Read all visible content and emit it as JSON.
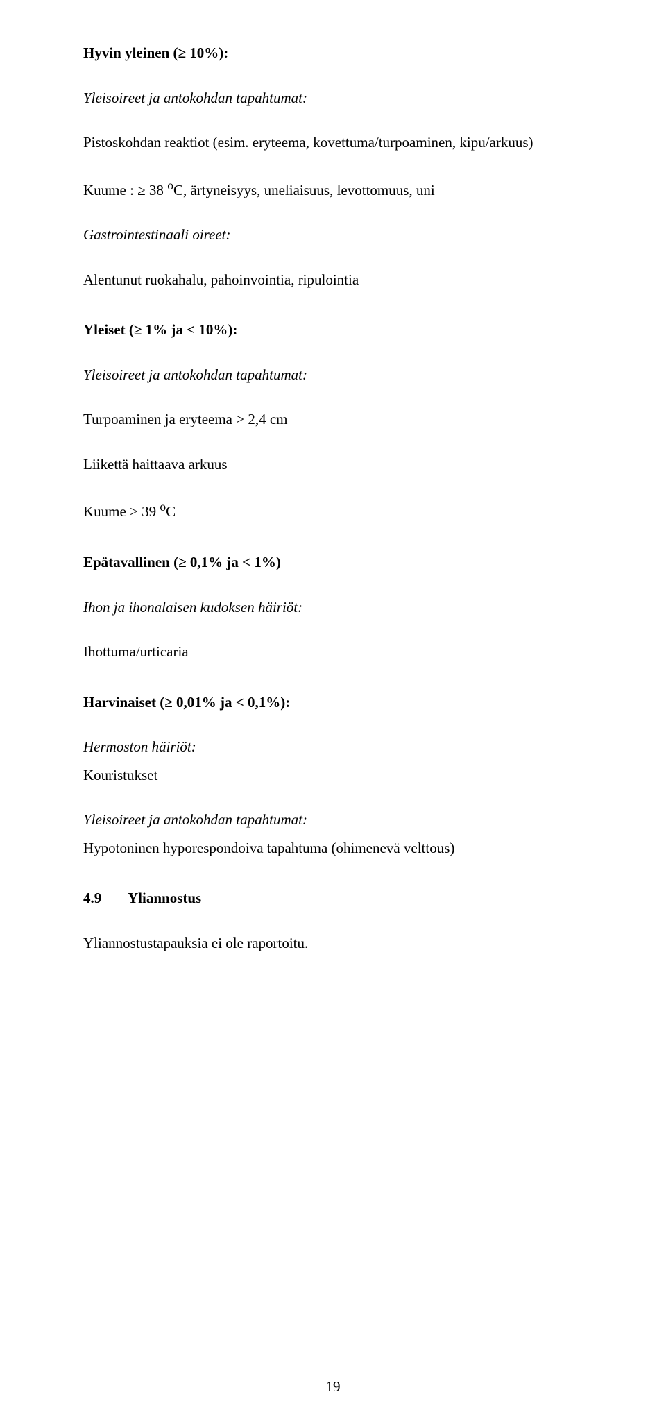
{
  "very_common": {
    "heading": "Hyvin yleinen (≥ 10%):",
    "sub_italic": "Yleisoireet ja antokohdan tapahtumat:",
    "line1": "Pistoskohdan reaktiot (esim. eryteema, kovettuma/turpoaminen, kipu/arkuus)",
    "line2_pre": "Kuume : ≥ 38 ",
    "line2_sup": "o",
    "line2_post": "C, ärtyneisyys, uneliaisuus, levottomuus, uni",
    "gi_italic": "Gastrointestinaali oireet:",
    "gi_line": "Alentunut ruokahalu, pahoinvointia, ripulointia"
  },
  "common": {
    "heading": "Yleiset (≥ 1% ja < 10%):",
    "sub_italic": "Yleisoireet ja antokohdan tapahtumat:",
    "line1": "Turpoaminen ja eryteema > 2,4 cm",
    "line2": "Liikettä haittaava arkuus",
    "line3_pre": "Kuume > 39 ",
    "line3_sup": "o",
    "line3_post": "C"
  },
  "uncommon": {
    "heading": "Epätavallinen (≥ 0,1% ja < 1%)",
    "sub_italic": "Ihon ja ihonalaisen kudoksen häiriöt:",
    "line1": "Ihottuma/urticaria"
  },
  "rare": {
    "heading": "Harvinaiset (≥ 0,01% ja < 0,1%):",
    "sub1_italic": "Hermoston häiriöt:",
    "line1": "Kouristukset",
    "sub2_italic": "Yleisoireet ja antokohdan tapahtumat:",
    "line2": "Hypotoninen hyporespondoiva tapahtuma (ohimenevä velttous)"
  },
  "sec49": {
    "num": "4.9",
    "title": "Yliannostus",
    "line": "Yliannostustapauksia ei ole raportoitu."
  },
  "page_number": "19"
}
